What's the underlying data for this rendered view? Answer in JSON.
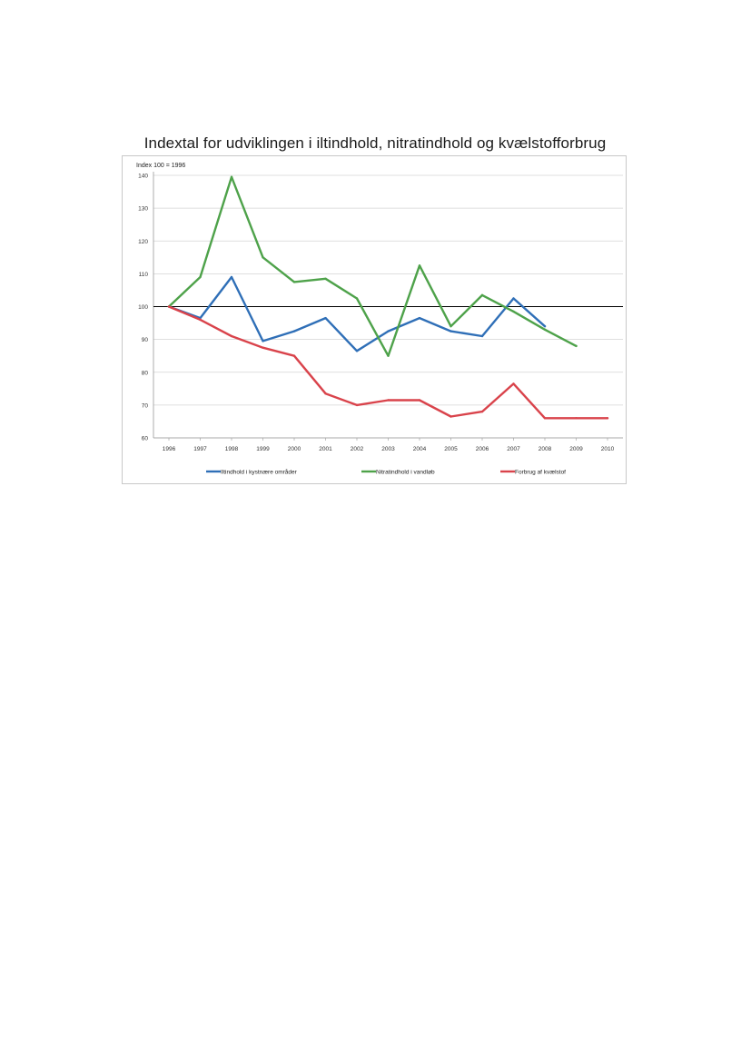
{
  "chart_data": {
    "type": "line",
    "title": "Indextal for udviklingen i iltindhold, nitratindhold og kvælstofforbrug",
    "ylabel": "Index 100 = 1996",
    "xlabel": "",
    "categories": [
      "1996",
      "1997",
      "1998",
      "1999",
      "2000",
      "2001",
      "2002",
      "2003",
      "2004",
      "2005",
      "2006",
      "2007",
      "2008",
      "2009",
      "2010"
    ],
    "ylim": [
      60,
      140
    ],
    "yticks": [
      "60",
      "70",
      "80",
      "90",
      "100",
      "110",
      "120",
      "130",
      "140"
    ],
    "reference_line": 100,
    "grid": true,
    "legend_position": "bottom",
    "series": [
      {
        "name": "Iltindhold i kystnære områder",
        "color": "#2f6fb7",
        "values": [
          100,
          96.5,
          109,
          89.5,
          92.5,
          96.5,
          86.5,
          92.5,
          96.5,
          92.5,
          91,
          102.5,
          94,
          null,
          null
        ]
      },
      {
        "name": "Nitratindhold i vandløb",
        "color": "#4ea24a",
        "values": [
          100,
          109,
          139.5,
          115,
          107.5,
          108.5,
          102.5,
          85,
          112.5,
          94,
          103.5,
          98.5,
          93,
          88,
          null
        ]
      },
      {
        "name": "Forbrug af kvælstof",
        "color": "#d9434b",
        "values": [
          100,
          96,
          91,
          87.5,
          85,
          73.5,
          70,
          71.5,
          71.5,
          66.5,
          68,
          76.5,
          66,
          66,
          66
        ]
      }
    ]
  }
}
